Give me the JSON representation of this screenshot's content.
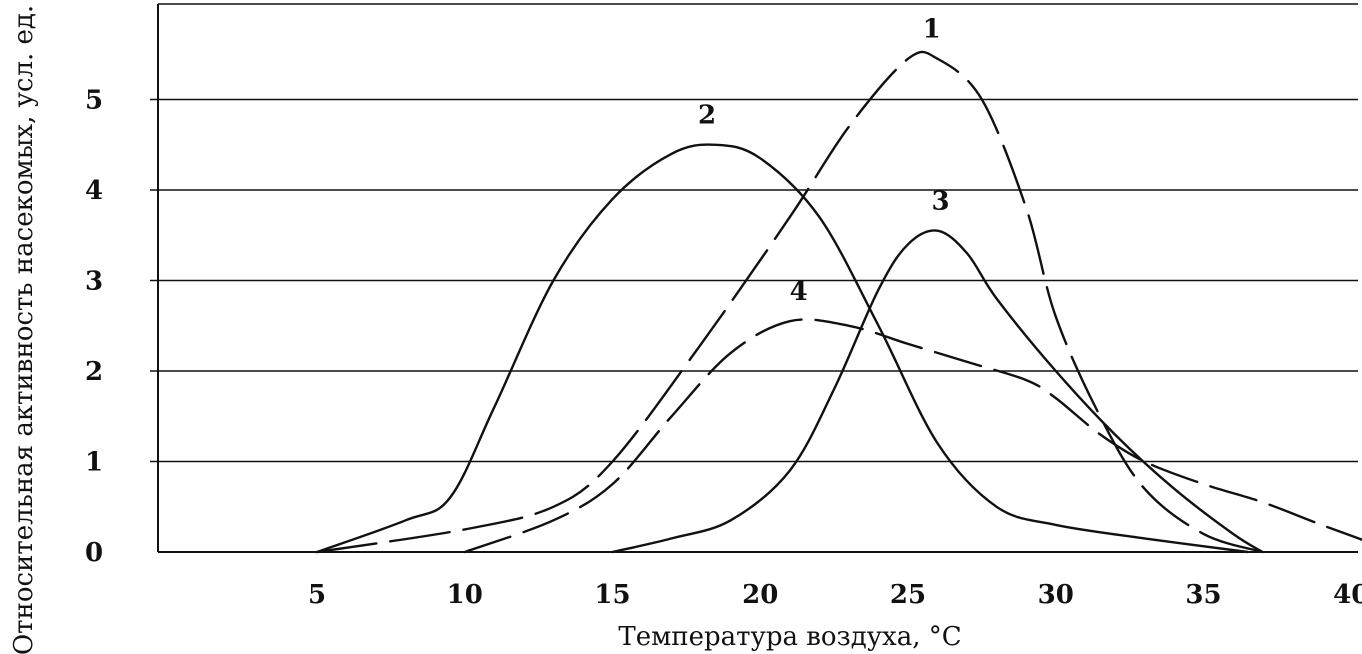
{
  "chart_data": {
    "type": "line",
    "xlabel": "Температура воздуха, °С",
    "ylabel": "Относительная активность насекомых, усл. ед.",
    "xlim": [
      0,
      42
    ],
    "ylim": [
      0,
      5.5
    ],
    "xticks": [
      "5",
      "10",
      "15",
      "20",
      "25",
      "30",
      "35",
      "40"
    ],
    "yticks": [
      "0",
      "1",
      "2",
      "3",
      "4",
      "5"
    ],
    "grid": "horizontal",
    "series": [
      {
        "name": "1",
        "x": [
          5,
          10,
          13,
          15,
          18,
          21,
          23,
          25,
          26,
          27.5,
          29,
          30,
          31.5,
          33,
          35,
          37
        ],
        "y": [
          0,
          0.25,
          0.5,
          1.0,
          2.3,
          3.7,
          4.7,
          5.45,
          5.45,
          5.0,
          3.8,
          2.6,
          1.5,
          0.7,
          0.2,
          0
        ]
      },
      {
        "name": "2",
        "x": [
          5,
          8,
          9.5,
          11,
          13,
          15,
          17,
          18.5,
          20,
          22,
          24,
          26,
          28,
          30,
          33,
          36.5
        ],
        "y": [
          0,
          0.35,
          0.6,
          1.6,
          3.0,
          3.9,
          4.4,
          4.5,
          4.35,
          3.7,
          2.5,
          1.2,
          0.5,
          0.3,
          0.15,
          0
        ]
      },
      {
        "name": "3",
        "x": [
          15,
          17,
          19,
          21,
          22.5,
          24,
          25,
          26,
          27,
          28,
          30,
          32,
          34,
          36,
          37
        ],
        "y": [
          0,
          0.15,
          0.35,
          0.9,
          1.8,
          2.9,
          3.4,
          3.55,
          3.3,
          2.8,
          2.0,
          1.3,
          0.7,
          0.2,
          0
        ]
      },
      {
        "name": "4",
        "x": [
          10,
          13,
          15,
          17,
          19,
          21,
          23,
          25,
          27,
          29,
          30,
          31.5,
          33,
          35,
          37,
          39,
          41.5
        ],
        "y": [
          0,
          0.35,
          0.75,
          1.5,
          2.2,
          2.55,
          2.5,
          2.3,
          2.1,
          1.9,
          1.7,
          1.3,
          1.0,
          0.75,
          0.55,
          0.3,
          0
        ]
      }
    ]
  }
}
